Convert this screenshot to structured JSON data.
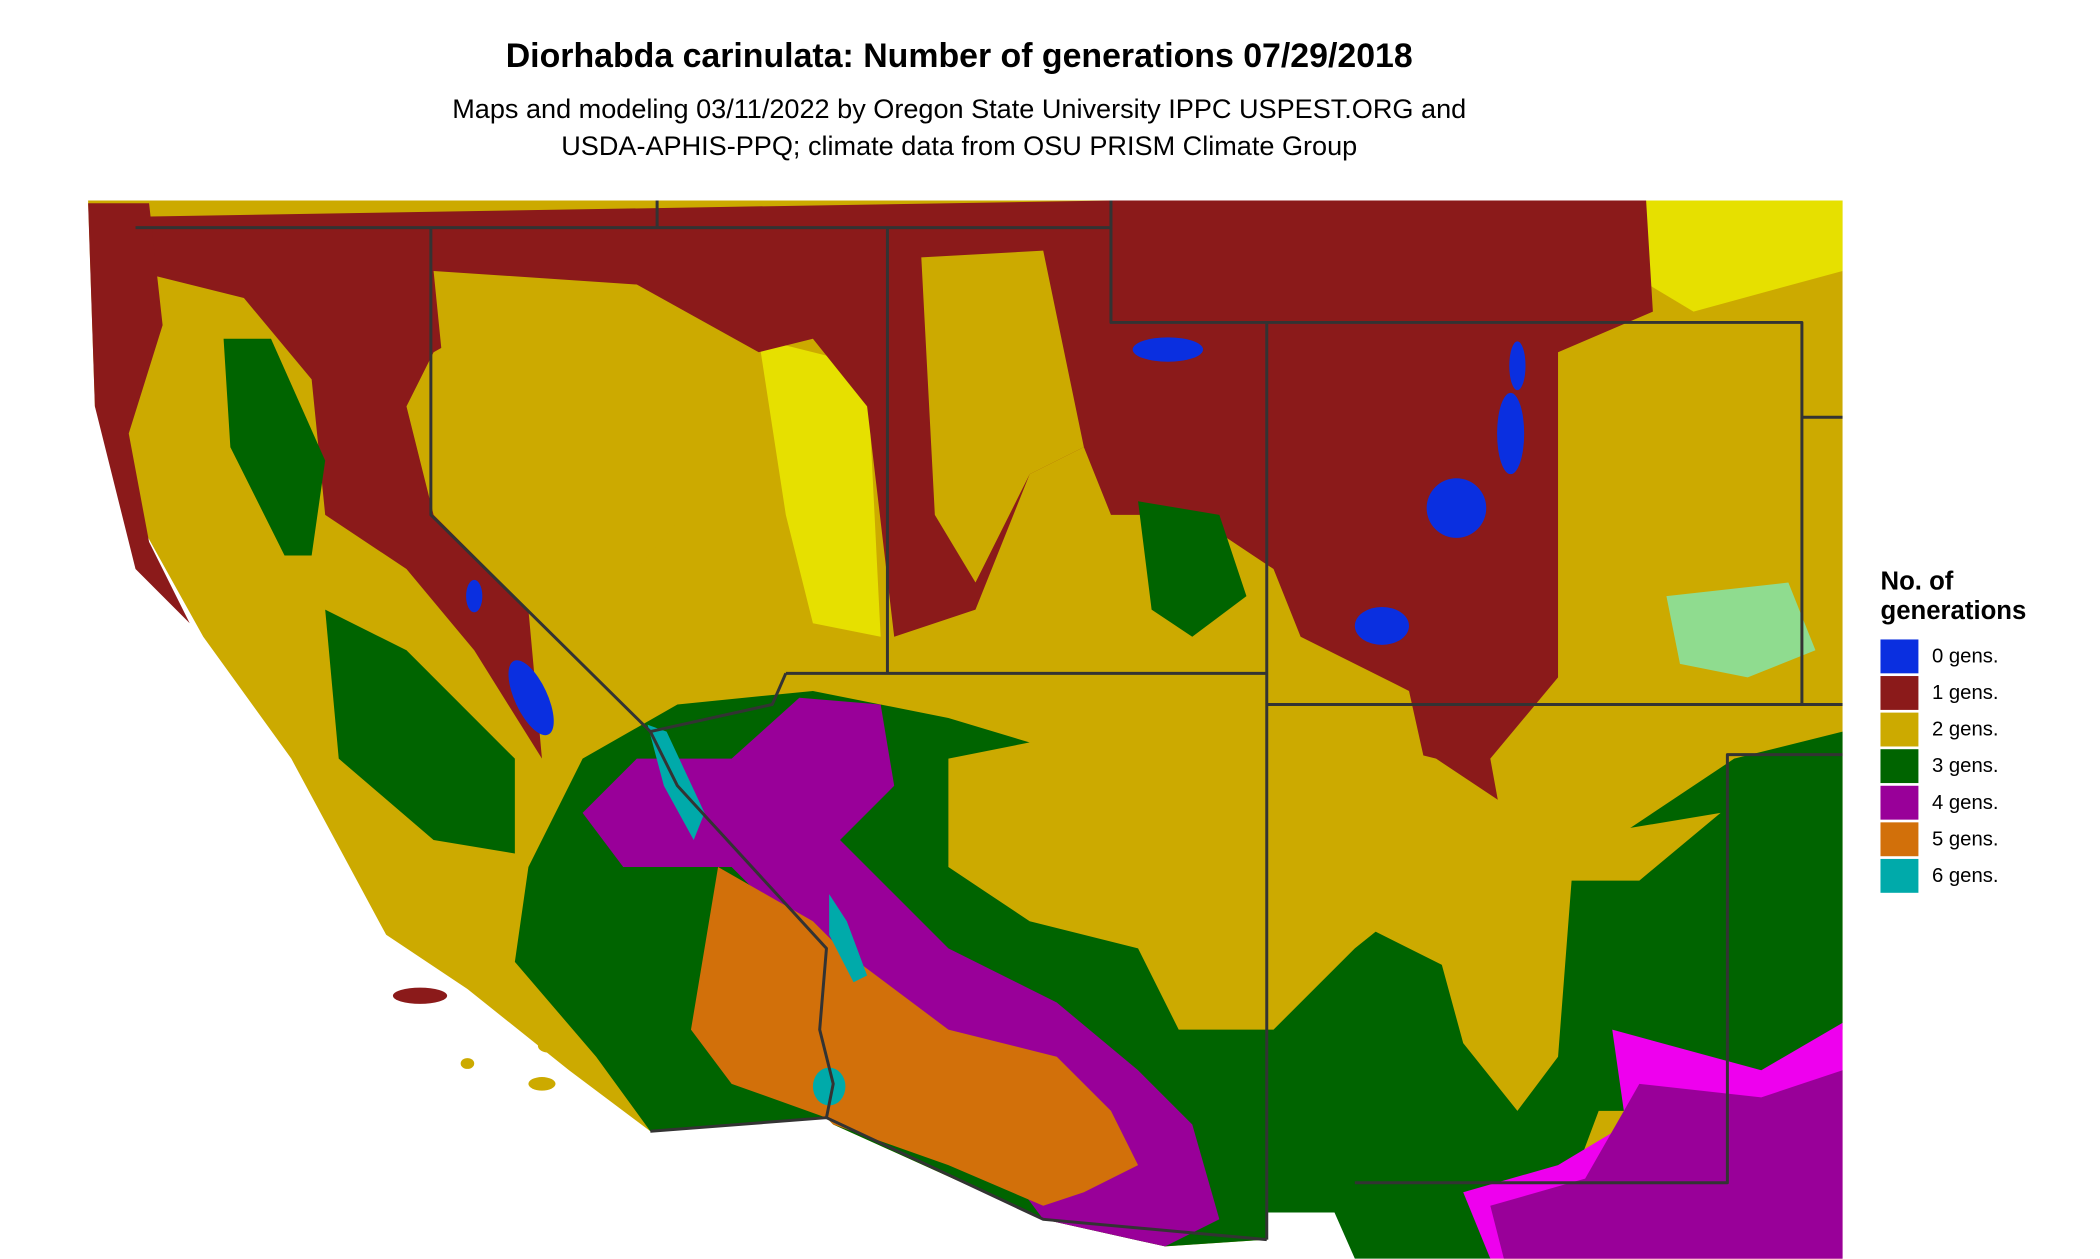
{
  "title": "Diorhabda carinulata: Number of generations 07/29/2018",
  "subtitle": [
    "Maps and modeling 03/11/2022 by Oregon State University IPPC USPEST.ORG and",
    "USDA-APHIS-PPQ; climate data from OSU PRISM Climate Group"
  ],
  "legend": {
    "title": [
      "No. of",
      "generations"
    ],
    "items": [
      {
        "label": "0 gens.",
        "color": "#0a2fe0"
      },
      {
        "label": "1 gens.",
        "color": "#8b1a1a"
      },
      {
        "label": "2 gens.",
        "color": "#ccaa00"
      },
      {
        "label": "3 gens.",
        "color": "#006400"
      },
      {
        "label": "4 gens.",
        "color": "#990099"
      },
      {
        "label": "5 gens.",
        "color": "#d2700a"
      },
      {
        "label": "6 gens.",
        "color": "#00aaaa"
      }
    ]
  }
}
